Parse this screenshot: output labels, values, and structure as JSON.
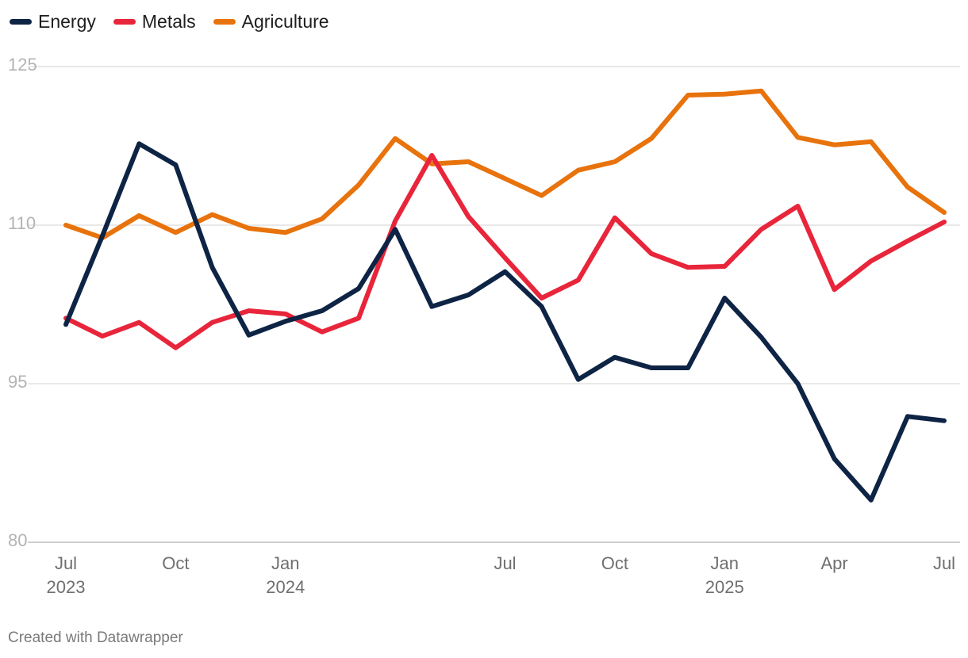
{
  "chart_data": {
    "type": "line",
    "title": "",
    "xlabel": "",
    "ylabel": "",
    "ylim": [
      80,
      125
    ],
    "yticks": [
      125,
      110,
      95,
      80
    ],
    "x": [
      "2023-07",
      "2023-08",
      "2023-09",
      "2023-10",
      "2023-11",
      "2023-12",
      "2024-01",
      "2024-02",
      "2024-03",
      "2024-04",
      "2024-05",
      "2024-06",
      "2024-07",
      "2024-08",
      "2024-09",
      "2024-10",
      "2024-11",
      "2024-12",
      "2025-01",
      "2025-02",
      "2025-03",
      "2025-04",
      "2025-05",
      "2025-06",
      "2025-07"
    ],
    "xtick_labels": [
      {
        "index": 0,
        "month": "Jul",
        "year": "2023"
      },
      {
        "index": 3,
        "month": "Oct",
        "year": ""
      },
      {
        "index": 6,
        "month": "Jan",
        "year": "2024"
      },
      {
        "index": 12,
        "month": "Jul",
        "year": ""
      },
      {
        "index": 15,
        "month": "Oct",
        "year": ""
      },
      {
        "index": 18,
        "month": "Jan",
        "year": "2025"
      },
      {
        "index": 21,
        "month": "Apr",
        "year": ""
      },
      {
        "index": 24,
        "month": "Jul",
        "year": ""
      }
    ],
    "series": [
      {
        "name": "Energy",
        "color": "#0e2445",
        "values": [
          100.6,
          109.0,
          117.7,
          115.7,
          106.0,
          99.6,
          100.9,
          101.9,
          104.0,
          109.6,
          102.3,
          103.4,
          105.6,
          102.3,
          95.4,
          97.5,
          96.5,
          96.5,
          103.1,
          99.4,
          95.0,
          87.9,
          84.0,
          91.9,
          91.5
        ]
      },
      {
        "name": "Metals",
        "color": "#e8253a",
        "values": [
          101.2,
          99.5,
          100.8,
          98.4,
          100.8,
          101.9,
          101.6,
          99.9,
          101.2,
          110.4,
          116.6,
          110.8,
          106.9,
          103.1,
          104.8,
          110.7,
          107.3,
          106.0,
          106.1,
          109.6,
          111.8,
          103.9,
          106.6,
          108.5,
          110.3
        ]
      },
      {
        "name": "Agriculture",
        "color": "#e8720c",
        "values": [
          110.0,
          108.8,
          110.9,
          109.3,
          111.0,
          109.7,
          109.3,
          110.6,
          113.8,
          118.2,
          115.8,
          116.0,
          114.4,
          112.8,
          115.2,
          116.0,
          118.2,
          122.3,
          122.4,
          122.7,
          118.3,
          117.6,
          117.9,
          113.6,
          111.2
        ]
      }
    ]
  },
  "footer": {
    "text": "Created with Datawrapper"
  }
}
